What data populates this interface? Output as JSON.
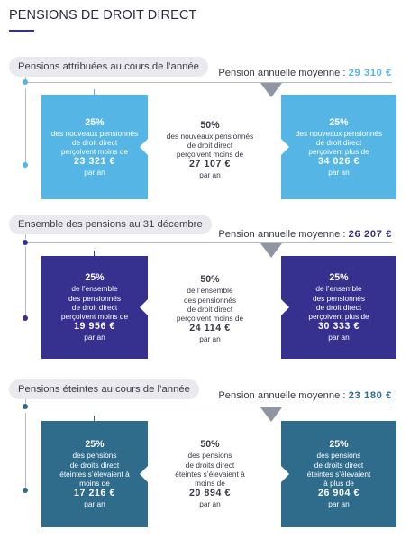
{
  "page": {
    "title": "PENSIONS DE DROIT DIRECT"
  },
  "sections": [
    {
      "label": "Pensions attribuées au cours de l’année",
      "avg_label": "Pension annuelle moyenne : ",
      "avg_value": "29 310 €",
      "color": "#55b6e5",
      "left": {
        "pct": "25%",
        "l1": "des nouveaux pensionnés",
        "l2": "de droit direct",
        "l3": "perçoivent moins de",
        "l4": "",
        "amount": "23 321 €",
        "unit": "par an"
      },
      "mid": {
        "pct": "50%",
        "l1": "des nouveaux pensionnés",
        "l2": "de droit direct",
        "l3": "perçoivent moins de",
        "l4": "",
        "amount": "27 107 €",
        "unit": "par an"
      },
      "right": {
        "pct": "25%",
        "l1": "des nouveaux pensionnés",
        "l2": "de droit direct",
        "l3": "perçoivent plus de",
        "l4": "",
        "amount": "34 026 €",
        "unit": "par an"
      }
    },
    {
      "label": "Ensemble des pensions au 31 décembre",
      "avg_label": "Pension annuelle moyenne : ",
      "avg_value": "26 207 €",
      "color": "#36308e",
      "left": {
        "pct": "25%",
        "l1": "de l’ensemble",
        "l2": "des pensionnés",
        "l3": "de droit direct",
        "l4": "perçoivent moins de",
        "amount": "19 956 €",
        "unit": "par an"
      },
      "mid": {
        "pct": "50%",
        "l1": "de l’ensemble",
        "l2": "des pensionnés",
        "l3": "de droit direct",
        "l4": "perçoivent moins de",
        "amount": "24 114 €",
        "unit": "par an"
      },
      "right": {
        "pct": "25%",
        "l1": "de l’ensemble",
        "l2": "des pensionnés",
        "l3": "de droit direct",
        "l4": "perçoivent plus de",
        "amount": "30 333 €",
        "unit": "par an"
      }
    },
    {
      "label": "Pensions éteintes au cours de l’année",
      "avg_label": "Pension annuelle moyenne : ",
      "avg_value": "23 180 €",
      "color": "#2f6b8a",
      "left": {
        "pct": "25%",
        "l1": "des pensions",
        "l2": "de droits direct",
        "l3": "éteintes s’élevaient à",
        "l4": "moins de",
        "amount": "17 216 €",
        "unit": "par an"
      },
      "mid": {
        "pct": "50%",
        "l1": "des pensions",
        "l2": "de droits direct",
        "l3": "éteintes s’élevaient à",
        "l4": "moins de",
        "amount": "20 894 €",
        "unit": "par an"
      },
      "right": {
        "pct": "25%",
        "l1": "des pensions",
        "l2": "de droits direct",
        "l3": "éteintes s’élevaient",
        "l4": "à plus de",
        "amount": "26 904 €",
        "unit": "par an"
      }
    }
  ]
}
